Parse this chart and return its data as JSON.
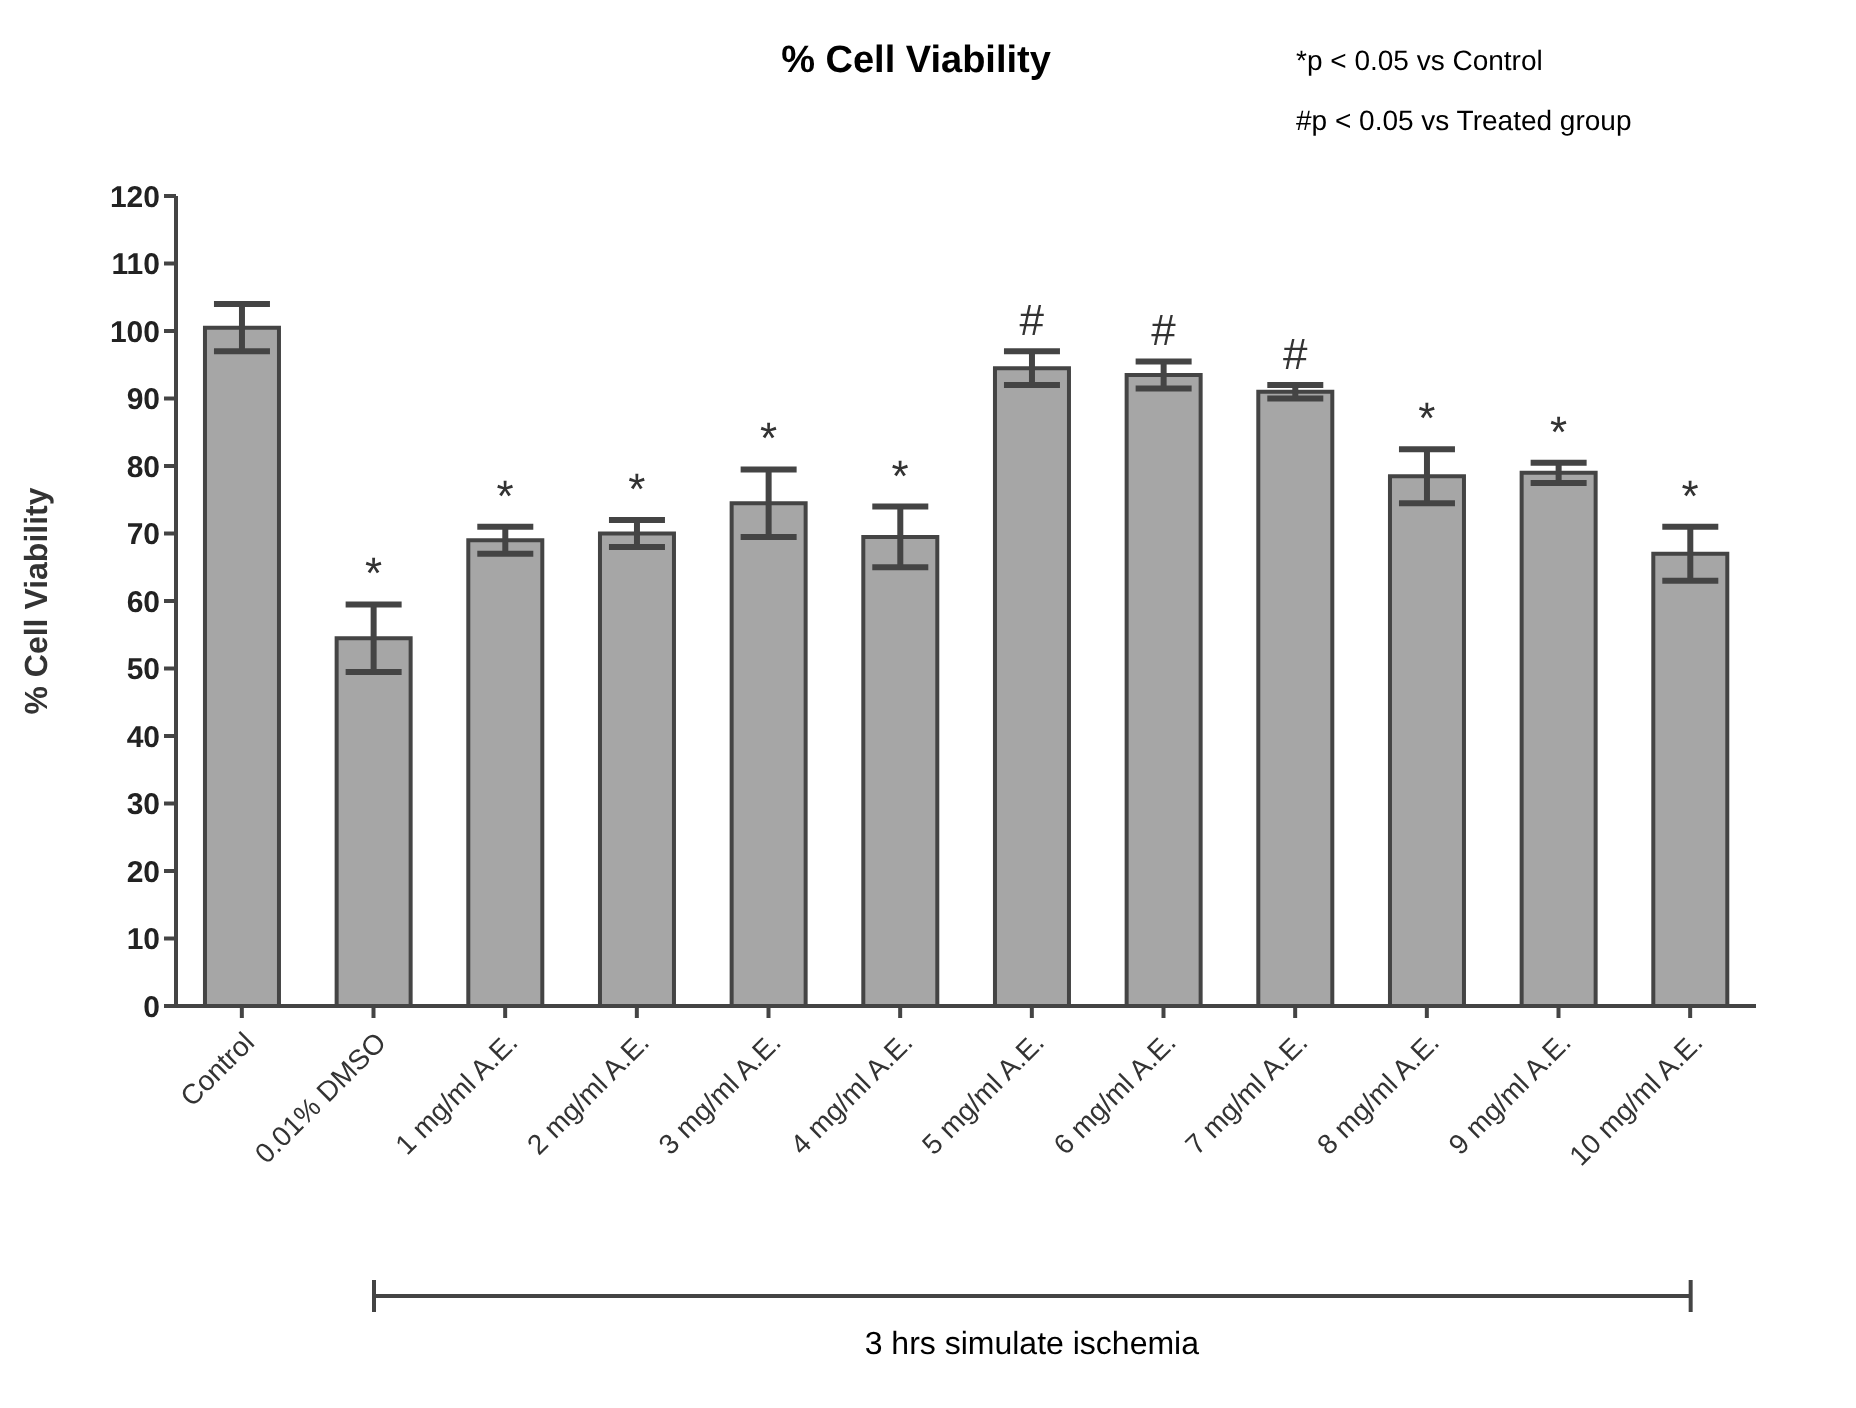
{
  "chart_data": {
    "type": "bar",
    "title": "% Cell Viability",
    "ylabel": "% Cell Viability",
    "categories": [
      "Control",
      "0.01% DMSO",
      "1 mg/ml A.E.",
      "2 mg/ml A.E.",
      "3 mg/ml A.E.",
      "4 mg/ml A.E.",
      "5 mg/ml A.E.",
      "6 mg/ml A.E.",
      "7 mg/ml A.E.",
      "8 mg/ml A.E.",
      "9 mg/ml A.E.",
      "10 mg/ml A.E."
    ],
    "values": [
      100.5,
      54.5,
      69,
      70,
      74.5,
      69.5,
      94.5,
      93.5,
      91,
      78.5,
      79,
      67
    ],
    "errors": [
      3.5,
      5,
      2,
      2,
      5,
      4.5,
      2.5,
      2,
      1,
      4,
      1.5,
      4
    ],
    "color": "#a6a6a6",
    "ylim": [
      0,
      120
    ],
    "yticks": [
      0,
      10,
      20,
      30,
      40,
      50,
      60,
      70,
      80,
      90,
      100,
      110,
      120
    ],
    "grid": false,
    "legend": false,
    "annotations": [
      "*p < 0.05 vs Control",
      "#p < 0.05 vs Treated group",
      {
        "text": "*",
        "x": "0.01% DMSO",
        "y": 59.5
      },
      {
        "text": "*",
        "x": "1 mg/ml A.E.",
        "y": 71
      },
      {
        "text": "*",
        "x": "2 mg/ml A.E.",
        "y": 72
      },
      {
        "text": "*",
        "x": "3 mg/ml A.E.",
        "y": 79.5
      },
      {
        "text": "*",
        "x": "4 mg/ml A.E.",
        "y": 74
      },
      {
        "text": "#",
        "x": "5 mg/ml A.E.",
        "y": 97
      },
      {
        "text": "#",
        "x": "6 mg/ml A.E.",
        "y": 95.5
      },
      {
        "text": "#",
        "x": "7 mg/ml A.E.",
        "y": 92
      },
      {
        "text": "*",
        "x": "8 mg/ml A.E.",
        "y": 82.5
      },
      {
        "text": "*",
        "x": "9 mg/ml A.E.",
        "y": 80.5
      },
      {
        "text": "*",
        "x": "10 mg/ml A.E.",
        "y": 71
      },
      "3 hrs simulate ischemia"
    ]
  }
}
